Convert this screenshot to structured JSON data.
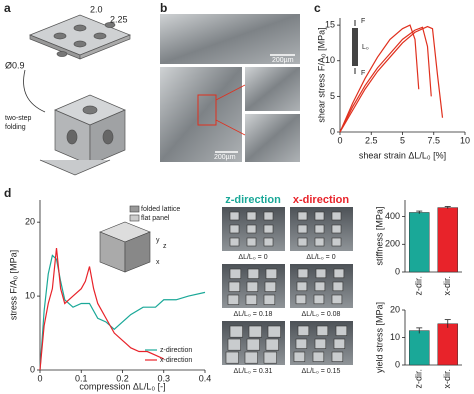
{
  "panel_labels": [
    "a",
    "b",
    "c",
    "d"
  ],
  "panel_a": {
    "dimensions": [
      "2.0",
      "2.25",
      "Ø0.9"
    ],
    "caption": [
      "two-step",
      "folding"
    ]
  },
  "panel_b": {
    "scale_bars": [
      "200µm",
      "200µm"
    ]
  },
  "panel_c_inset": {
    "force_labels": [
      "F",
      "F"
    ],
    "length_label": "L₀"
  },
  "panel_d_inset": {
    "legend": [
      "folded lattice",
      "flat panel"
    ],
    "axes": [
      "y",
      "z",
      "x"
    ]
  },
  "panel_d_images": {
    "headers": [
      "z-direction",
      "x-direction"
    ],
    "z_labels": [
      "ΔL/L₀ = 0",
      "ΔL/L₀ = 0.18",
      "ΔL/L₀ = 0.31"
    ],
    "x_labels": [
      "ΔL/L₀ = 0",
      "ΔL/L₀ = 0.08",
      "ΔL/L₀ = 0.15"
    ]
  },
  "chart_data": [
    {
      "type": "line",
      "xlabel": "shear strain ΔL/L₀ [%]",
      "ylabel": "shear stress F/A₀ [MPa]",
      "xlim": [
        0,
        10
      ],
      "ylim": [
        0,
        16
      ],
      "xticks": [
        0,
        2.5,
        5,
        7.5,
        10
      ],
      "yticks": [
        0,
        5,
        10,
        15
      ],
      "series": [
        {
          "color": "#e0301e",
          "x": [
            0,
            0.5,
            1,
            2,
            3,
            4,
            5,
            5.6,
            6.0,
            6.3
          ],
          "values": [
            0,
            2,
            4,
            7.5,
            10.5,
            13,
            14.5,
            15,
            13,
            6
          ]
        },
        {
          "color": "#e0301e",
          "x": [
            0,
            1,
            2,
            3,
            4,
            5,
            6,
            6.6,
            7.0,
            7.3
          ],
          "values": [
            0,
            3.5,
            6.5,
            9,
            11,
            13,
            14.3,
            14.7,
            12,
            5
          ]
        },
        {
          "color": "#e0301e",
          "x": [
            0,
            1,
            2,
            3,
            4,
            5,
            6,
            7,
            7.4,
            7.8,
            8.2
          ],
          "values": [
            0,
            3,
            6,
            8.5,
            10.5,
            12.5,
            14,
            14.8,
            14.5,
            8,
            2
          ]
        }
      ]
    },
    {
      "type": "line",
      "xlabel": "compression ΔL/L₀ [-]",
      "ylabel": "stress F/A₀ [MPa]",
      "xlim": [
        0,
        0.4
      ],
      "ylim": [
        0,
        23
      ],
      "xticks": [
        0,
        0.1,
        0.2,
        0.3,
        0.4
      ],
      "yticks": [
        0,
        10,
        20
      ],
      "legend": "lower right",
      "series": [
        {
          "name": "z-direction",
          "color": "#1aa898",
          "x": [
            0,
            0.01,
            0.02,
            0.03,
            0.04,
            0.05,
            0.06,
            0.08,
            0.1,
            0.12,
            0.14,
            0.16,
            0.18,
            0.2,
            0.22,
            0.25,
            0.28,
            0.3,
            0.33,
            0.36,
            0.4
          ],
          "values": [
            0,
            8,
            13,
            15.5,
            15,
            12,
            9.5,
            8.5,
            9,
            9,
            7,
            6.5,
            5.5,
            6.5,
            7.5,
            8.5,
            8.5,
            9.5,
            9.5,
            10,
            10.5
          ]
        },
        {
          "name": "x-direction",
          "color": "#e8232a",
          "x": [
            0,
            0.01,
            0.02,
            0.03,
            0.04,
            0.05,
            0.06,
            0.08,
            0.1,
            0.11,
            0.12,
            0.13,
            0.14,
            0.16,
            0.18,
            0.2,
            0.22,
            0.24,
            0.26,
            0.28,
            0.3
          ],
          "values": [
            0,
            6,
            9,
            11,
            16.5,
            11,
            9,
            10,
            11,
            12,
            14,
            11,
            9,
            7,
            5,
            4,
            3,
            2.5,
            2.5,
            2,
            1.5
          ]
        }
      ]
    },
    {
      "type": "bar",
      "ylabel": "stiffness [MPa]",
      "categories": [
        "z-dir.",
        "x-dir."
      ],
      "values": [
        430,
        465
      ],
      "errors": [
        10,
        8
      ],
      "colors": [
        "#1aa898",
        "#e8232a"
      ],
      "ylim": [
        0,
        520
      ],
      "yticks": [
        0,
        200,
        400
      ]
    },
    {
      "type": "bar",
      "ylabel": "yield stress [MPa]",
      "categories": [
        "z-dir.",
        "x-dir."
      ],
      "values": [
        12.5,
        15
      ],
      "errors": [
        1,
        1.5
      ],
      "colors": [
        "#1aa898",
        "#e8232a"
      ],
      "ylim": [
        0,
        20
      ],
      "yticks": [
        0,
        10,
        20
      ]
    }
  ]
}
